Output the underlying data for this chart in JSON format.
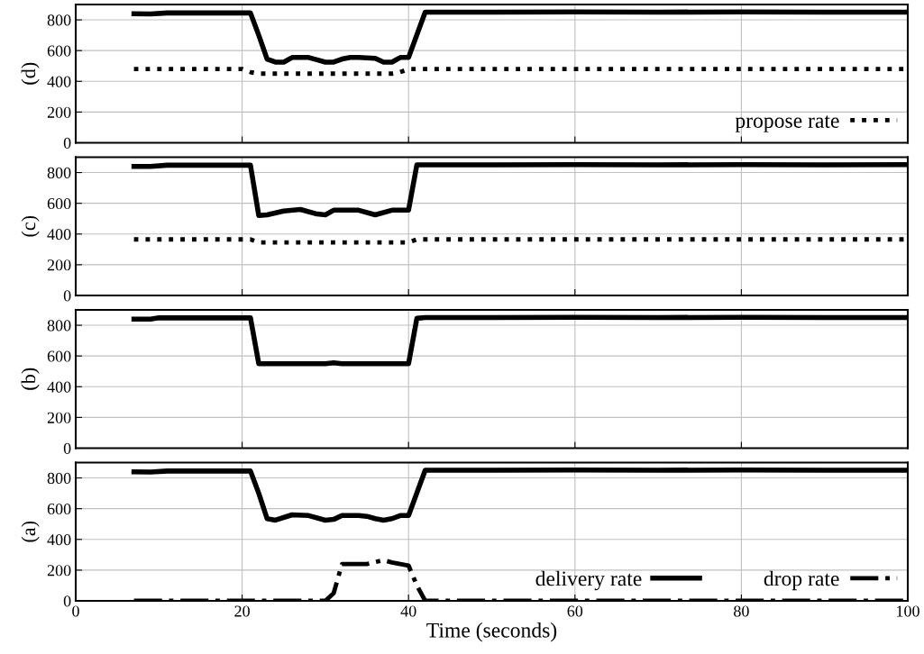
{
  "chart_data": [
    {
      "type": "line",
      "ylabel": "(d)",
      "xlim": [
        0,
        100
      ],
      "xticks": [
        0,
        20,
        40,
        60,
        80,
        100
      ],
      "ylim": [
        0,
        900
      ],
      "yticks": [
        0,
        200,
        400,
        600,
        800
      ],
      "grid": true,
      "tick_labels": "y",
      "legend": "bottom right",
      "marker": "none",
      "series": [
        {
          "color": "#000000",
          "line_style": "solid",
          "x": [
            7,
            9,
            11,
            15,
            21,
            22,
            23,
            24,
            25,
            26,
            28,
            29,
            30,
            31,
            32,
            33,
            34,
            36,
            37,
            38,
            39,
            40,
            42,
            50,
            60,
            70,
            80,
            90,
            100
          ],
          "values": [
            840,
            838,
            845,
            845,
            845,
            700,
            545,
            525,
            525,
            555,
            555,
            540,
            525,
            525,
            545,
            555,
            555,
            550,
            525,
            525,
            555,
            555,
            850,
            850,
            852,
            850,
            852,
            850,
            850
          ]
        },
        {
          "name": "propose rate",
          "color": "#000000",
          "line_style": "dotted",
          "x": [
            7,
            20,
            21,
            22,
            38,
            39,
            40,
            100
          ],
          "values": [
            480,
            480,
            460,
            450,
            450,
            460,
            480,
            480
          ]
        }
      ]
    },
    {
      "type": "line",
      "ylabel": "(c)",
      "xlim": [
        0,
        100
      ],
      "xticks": [
        0,
        20,
        40,
        60,
        80,
        100
      ],
      "ylim": [
        0,
        900
      ],
      "yticks": [
        0,
        200,
        400,
        600,
        800
      ],
      "grid": true,
      "tick_labels": "y",
      "marker": "none",
      "series": [
        {
          "color": "#000000",
          "line_style": "solid",
          "x": [
            7,
            9,
            11,
            15,
            21,
            22,
            23,
            25,
            27,
            29,
            30,
            31,
            34,
            36,
            38,
            40,
            41,
            50,
            60,
            70,
            80,
            90,
            100
          ],
          "values": [
            840,
            840,
            848,
            848,
            848,
            520,
            525,
            550,
            560,
            530,
            525,
            555,
            555,
            525,
            555,
            555,
            850,
            850,
            852,
            850,
            852,
            850,
            852
          ]
        },
        {
          "color": "#000000",
          "line_style": "dotted",
          "x": [
            7,
            21,
            22,
            40,
            41,
            100
          ],
          "values": [
            365,
            365,
            345,
            345,
            365,
            365
          ]
        }
      ]
    },
    {
      "type": "line",
      "ylabel": "(b)",
      "xlim": [
        0,
        100
      ],
      "xticks": [
        0,
        20,
        40,
        60,
        80,
        100
      ],
      "ylim": [
        0,
        900
      ],
      "yticks": [
        0,
        200,
        400,
        600,
        800
      ],
      "grid": true,
      "tick_labels": "y",
      "marker": "none",
      "series": [
        {
          "color": "#000000",
          "line_style": "solid",
          "x": [
            7,
            9,
            10,
            15,
            21,
            22,
            30,
            31,
            32,
            40,
            41,
            42,
            50,
            60,
            70,
            80,
            90,
            100
          ],
          "values": [
            840,
            840,
            848,
            848,
            848,
            550,
            550,
            555,
            550,
            550,
            845,
            850,
            850,
            852,
            850,
            852,
            850,
            850
          ]
        }
      ]
    },
    {
      "type": "line",
      "ylabel": "(a)",
      "xlabel": "Time (seconds)",
      "xlim": [
        0,
        100
      ],
      "xticks": [
        0,
        20,
        40,
        60,
        80,
        100
      ],
      "ylim": [
        0,
        900
      ],
      "yticks": [
        0,
        200,
        400,
        600,
        800
      ],
      "grid": true,
      "legend": "bottom right",
      "marker": "none",
      "series": [
        {
          "name": "delivery rate",
          "color": "#000000",
          "line_style": "solid",
          "x": [
            7,
            9,
            11,
            15,
            21,
            22,
            23,
            24,
            26,
            28,
            30,
            31,
            32,
            34,
            35,
            36,
            37,
            38,
            39,
            40,
            42,
            50,
            60,
            70,
            80,
            90,
            100
          ],
          "values": [
            840,
            838,
            845,
            845,
            845,
            700,
            535,
            525,
            560,
            555,
            525,
            530,
            555,
            555,
            550,
            535,
            525,
            535,
            555,
            555,
            850,
            850,
            852,
            850,
            852,
            850,
            850
          ]
        },
        {
          "name": "drop rate",
          "color": "#000000",
          "line_style": "dashdot",
          "x": [
            7,
            30,
            31,
            32,
            35,
            37,
            38,
            39,
            40,
            41,
            42,
            100
          ],
          "values": [
            0,
            0,
            50,
            240,
            240,
            265,
            250,
            240,
            230,
            100,
            0,
            0
          ]
        }
      ]
    }
  ]
}
